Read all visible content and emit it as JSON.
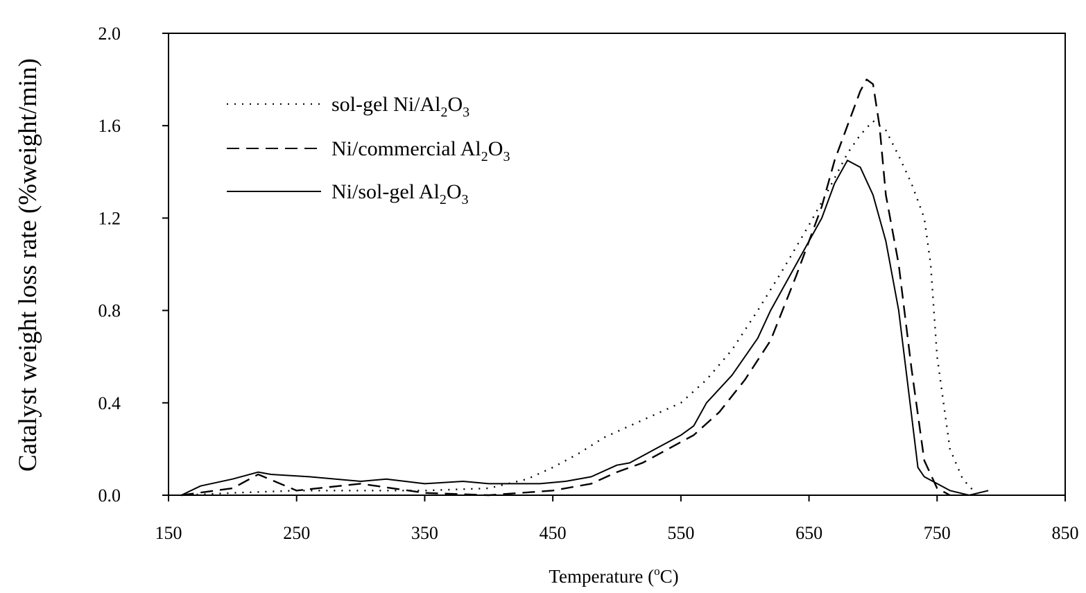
{
  "chart_data": {
    "type": "line",
    "xlabel": "Temperature (°C)",
    "xlabel_main": "Temperature (",
    "xlabel_sup": "o",
    "xlabel_tail": "C)",
    "ylabel": "Catalyst weight loss rate (%weight/min)",
    "xlim": [
      150,
      850
    ],
    "ylim": [
      0,
      2.0
    ],
    "xticks": [
      "150",
      "250",
      "350",
      "450",
      "550",
      "650",
      "750",
      "850"
    ],
    "yticks": [
      "0.0",
      "0.4",
      "0.8",
      "1.2",
      "1.6",
      "2.0"
    ],
    "grid": false,
    "legend_position": "top-left",
    "series": [
      {
        "name": "sol-gel Ni/Al2O3",
        "label_main": "sol-gel Ni/Al",
        "label_sub1": "2",
        "label_mid": "O",
        "label_sub2": "3",
        "style": "dotted",
        "x": [
          160,
          200,
          250,
          300,
          350,
          400,
          430,
          450,
          470,
          490,
          510,
          530,
          550,
          570,
          590,
          610,
          630,
          650,
          665,
          680,
          690,
          700,
          710,
          720,
          730,
          740,
          745,
          750,
          760,
          770,
          780
        ],
        "y": [
          0.0,
          0.01,
          0.02,
          0.02,
          0.02,
          0.03,
          0.07,
          0.12,
          0.18,
          0.25,
          0.3,
          0.35,
          0.4,
          0.5,
          0.63,
          0.8,
          0.98,
          1.17,
          1.32,
          1.48,
          1.56,
          1.62,
          1.58,
          1.47,
          1.35,
          1.2,
          1.0,
          0.6,
          0.2,
          0.07,
          0.01
        ]
      },
      {
        "name": "Ni/commercial Al2O3",
        "label_main": "Ni/commercial Al",
        "label_sub1": "2",
        "label_mid": "O",
        "label_sub2": "3",
        "style": "dashed",
        "x": [
          160,
          200,
          220,
          250,
          300,
          350,
          400,
          450,
          480,
          500,
          520,
          540,
          560,
          580,
          600,
          620,
          640,
          660,
          670,
          680,
          690,
          695,
          700,
          705,
          710,
          720,
          730,
          740,
          750,
          760
        ],
        "y": [
          0.0,
          0.03,
          0.09,
          0.02,
          0.05,
          0.01,
          0.0,
          0.02,
          0.05,
          0.1,
          0.14,
          0.2,
          0.26,
          0.36,
          0.5,
          0.67,
          0.95,
          1.25,
          1.45,
          1.6,
          1.75,
          1.8,
          1.78,
          1.6,
          1.3,
          1.0,
          0.55,
          0.15,
          0.03,
          0.0
        ]
      },
      {
        "name": "Ni/sol-gel Al2O3",
        "label_main": "Ni/sol-gel Al",
        "label_sub1": "2",
        "label_mid": "O",
        "label_sub2": "3",
        "style": "solid",
        "x": [
          160,
          175,
          200,
          220,
          230,
          260,
          300,
          320,
          350,
          380,
          400,
          420,
          440,
          460,
          480,
          500,
          510,
          530,
          550,
          560,
          570,
          590,
          610,
          620,
          640,
          660,
          670,
          680,
          690,
          700,
          710,
          720,
          730,
          735,
          740,
          760,
          775,
          790
        ],
        "y": [
          0.0,
          0.04,
          0.07,
          0.1,
          0.09,
          0.08,
          0.06,
          0.07,
          0.05,
          0.06,
          0.05,
          0.05,
          0.05,
          0.06,
          0.08,
          0.13,
          0.14,
          0.2,
          0.26,
          0.3,
          0.4,
          0.52,
          0.68,
          0.8,
          1.0,
          1.2,
          1.35,
          1.45,
          1.42,
          1.3,
          1.1,
          0.8,
          0.35,
          0.12,
          0.08,
          0.02,
          0.0,
          0.02
        ]
      }
    ]
  }
}
